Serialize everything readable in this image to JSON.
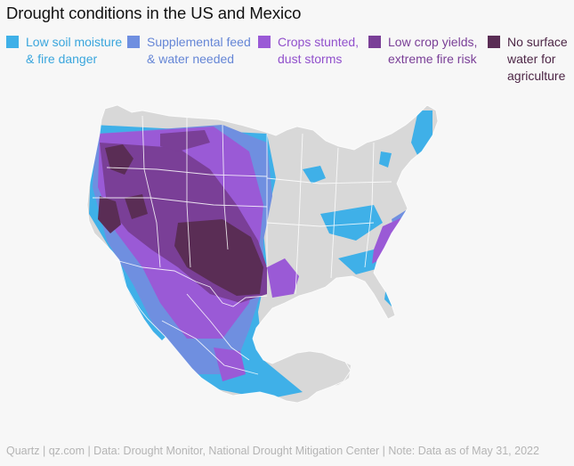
{
  "title": "Drought conditions in the US and Mexico",
  "legend": [
    {
      "label": "Low soil moisture\n& fire danger",
      "color": "#3fb0e8",
      "text_color": "#3aa6dd"
    },
    {
      "label": "Supplemental feed\n& water needed",
      "color": "#6f8fe0",
      "text_color": "#6586d6"
    },
    {
      "label": "Crops stunted,\ndust storms",
      "color": "#9a5ad6",
      "text_color": "#9150cc"
    },
    {
      "label": "Low crop yields,\nextreme fire risk",
      "color": "#7a3f97",
      "text_color": "#7a3f97"
    },
    {
      "label": "No surface\nwater for\nagriculture",
      "color": "#5a2d55",
      "text_color": "#4d2646"
    }
  ],
  "map": {
    "land_color": "#d8d8d8",
    "border_color": "#ffffff",
    "regions": [
      "United States",
      "Mexico"
    ]
  },
  "footer": "Quartz | qz.com | Data: Drought Monitor, National Drought Mitigation Center | Note: Data as of May 31, 2022"
}
